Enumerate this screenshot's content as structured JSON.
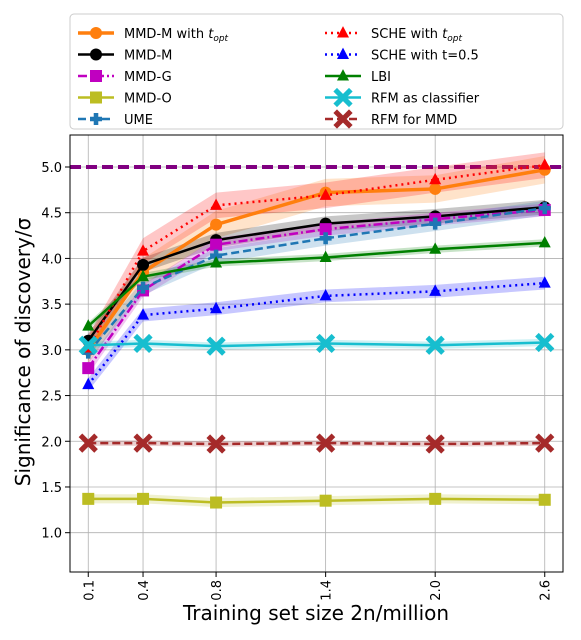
{
  "chart_data": {
    "type": "line",
    "xlabel": "Training set size 2n/million",
    "ylabel": "Significance of discovery/σ",
    "x": [
      0.1,
      0.4,
      0.8,
      1.4,
      2.0,
      2.6
    ],
    "x_tick_labels": [
      "0.1",
      "0.4",
      "0.8",
      "1.4",
      "2.0",
      "2.6"
    ],
    "xlim": [
      0.0,
      2.7
    ],
    "ylim": [
      0.57,
      5.35
    ],
    "y_ticks": [
      1.0,
      1.5,
      2.0,
      2.5,
      3.0,
      3.5,
      4.0,
      4.5,
      5.0
    ],
    "y_tick_labels": [
      "1.0",
      "1.5",
      "2.0",
      "2.5",
      "3.0",
      "3.5",
      "4.0",
      "4.5",
      "5.0"
    ],
    "grid": true,
    "legend_placement": "top, above plot (two columns)",
    "reference_line": {
      "y": 5.0,
      "color": "#800080",
      "style": "dashed"
    },
    "series": [
      {
        "name": "MMD-M with t_opt",
        "name_main": "MMD-M with ",
        "name_sub": "opt",
        "color": "#ff7f0e",
        "marker": "circle",
        "dash": "solid",
        "width": 3.5,
        "values": [
          3.0,
          3.85,
          4.37,
          4.72,
          4.76,
          4.97
        ],
        "band": 0.15
      },
      {
        "name": "MMD-M",
        "color": "#000000",
        "marker": "circle",
        "dash": "solid",
        "width": 2.5,
        "values": [
          3.1,
          3.93,
          4.2,
          4.38,
          4.46,
          4.56
        ],
        "band": 0.08
      },
      {
        "name": "MMD-G",
        "color": "#c000c0",
        "marker": "square",
        "dash": "dashdot",
        "width": 2.5,
        "values": [
          2.8,
          3.65,
          4.15,
          4.32,
          4.43,
          4.53
        ],
        "band": 0.07
      },
      {
        "name": "MMD-O",
        "color": "#bcbd22",
        "marker": "square",
        "dash": "solid",
        "width": 2.5,
        "values": [
          1.37,
          1.37,
          1.33,
          1.35,
          1.37,
          1.36
        ],
        "band": 0.05
      },
      {
        "name": "UME",
        "color": "#1f77b4",
        "marker": "plus",
        "dash": "dashed",
        "width": 2.5,
        "values": [
          2.97,
          3.68,
          4.03,
          4.22,
          4.38,
          4.55
        ],
        "band": 0.08
      },
      {
        "name": "SCHE with t_opt",
        "name_main": "SCHE with ",
        "name_sub": "opt",
        "color": "#ff0000",
        "marker": "triangle",
        "dash": "dotted",
        "width": 2.5,
        "values": [
          3.02,
          4.08,
          4.58,
          4.69,
          4.86,
          5.02
        ],
        "band": 0.14
      },
      {
        "name": "SCHE with t=0.5",
        "color": "#0000ff",
        "marker": "triangle",
        "dash": "dotted",
        "width": 2.5,
        "values": [
          2.62,
          3.38,
          3.45,
          3.59,
          3.64,
          3.73
        ],
        "band": 0.07
      },
      {
        "name": "LBI",
        "color": "#008000",
        "marker": "triangle",
        "dash": "solid",
        "width": 2.5,
        "values": [
          3.26,
          3.8,
          3.95,
          4.01,
          4.1,
          4.17
        ],
        "band": 0.04
      },
      {
        "name": "RFM as classifier",
        "color": "#17becf",
        "marker": "xfilled",
        "dash": "solid",
        "width": 2.5,
        "values": [
          3.05,
          3.07,
          3.04,
          3.07,
          3.05,
          3.08
        ],
        "band": 0.04
      },
      {
        "name": "RFM for MMD",
        "color": "#a52a2a",
        "marker": "xfilled",
        "dash": "dashed",
        "width": 2.5,
        "values": [
          1.98,
          1.98,
          1.97,
          1.98,
          1.97,
          1.98
        ],
        "band": 0.03
      }
    ]
  }
}
